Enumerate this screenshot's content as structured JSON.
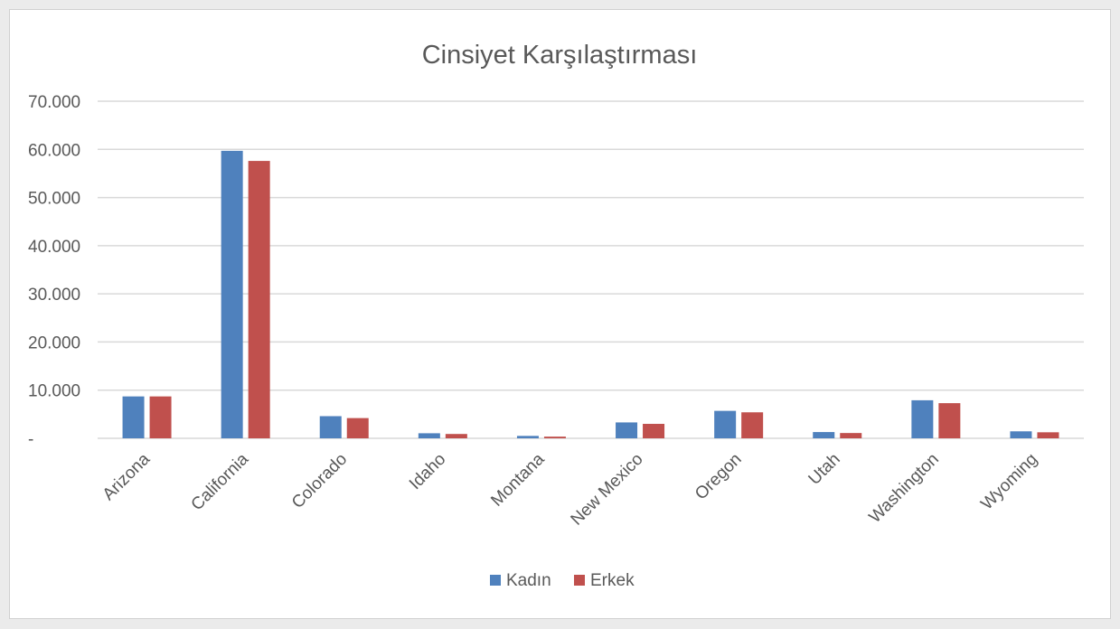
{
  "chart_data": {
    "type": "bar",
    "title": "Cinsiyet Karşılaştırması",
    "xlabel": "",
    "ylabel": "",
    "categories": [
      "Arizona",
      "California",
      "Colorado",
      "Idaho",
      "Montana",
      "New Mexico",
      "Oregon",
      "Utah",
      "Washington",
      "Wyoming"
    ],
    "series": [
      {
        "name": "Kadın",
        "color": "#4f81bd",
        "values": [
          8700,
          59700,
          4600,
          1050,
          500,
          3300,
          5700,
          1300,
          7900,
          1450
        ]
      },
      {
        "name": "Erkek",
        "color": "#c0504d",
        "values": [
          8700,
          57600,
          4200,
          900,
          350,
          3000,
          5400,
          1100,
          7300,
          1250
        ]
      }
    ],
    "ylim": [
      0,
      70000
    ],
    "yticks": [
      0,
      10000,
      20000,
      30000,
      40000,
      50000,
      60000,
      70000
    ],
    "ytick_labels": [
      "-",
      "10.000",
      "20.000",
      "30.000",
      "40.000",
      "50.000",
      "60.000",
      "70.000"
    ],
    "grid": true,
    "legend_position": "bottom"
  }
}
